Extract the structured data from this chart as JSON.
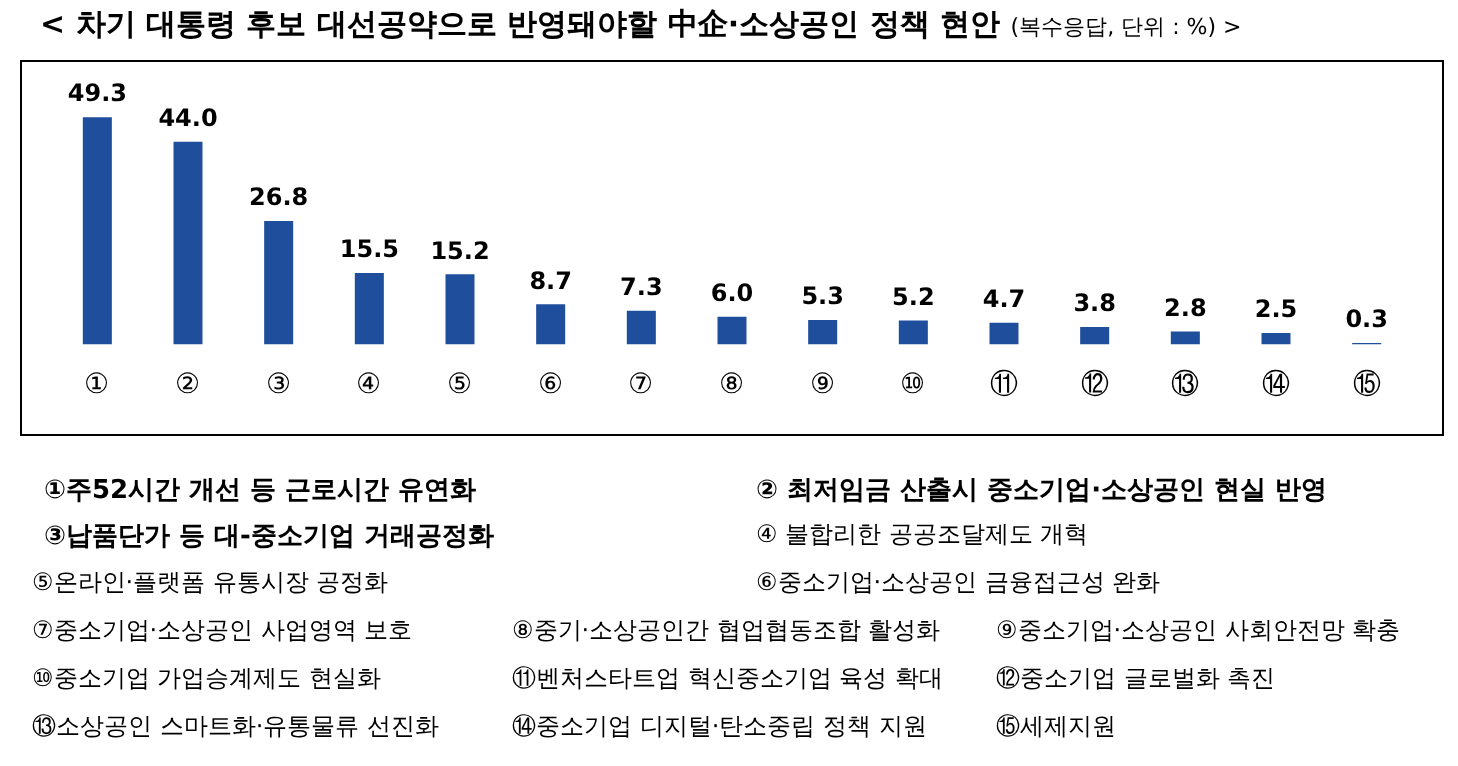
{
  "chart_data": {
    "type": "bar",
    "title": "< 차기 대통령 후보 대선공약으로 반영돼야할 中企·소상공인 정책 현안",
    "subtitle": "(복수응답, 단위 : %) >",
    "categories": [
      "①",
      "②",
      "③",
      "④",
      "⑤",
      "⑥",
      "⑦",
      "⑧",
      "⑨",
      "⑩",
      "⑪",
      "⑫",
      "⑬",
      "⑭",
      "⑮"
    ],
    "values": [
      49.3,
      44.0,
      26.8,
      15.5,
      15.2,
      8.7,
      7.3,
      6.0,
      5.3,
      5.2,
      4.7,
      3.8,
      2.8,
      2.5,
      0.3
    ],
    "value_labels": [
      "49.3",
      "44.0",
      "26.8",
      "15.5",
      "15.2",
      "8.7",
      "7.3",
      "6.0",
      "5.3",
      "5.2",
      "4.7",
      "3.8",
      "2.8",
      "2.5",
      "0.3"
    ],
    "color": "#1f4e9c",
    "tick_labels": "x",
    "grid": false,
    "legend": false,
    "annotations": [
      "①주52시간 개선 등 근로시간 유연화",
      "② 최저임금 산출시 중소기업·소상공인 현실 반영",
      "③납품단가 등 대-중소기업 거래공정화",
      "④ 불합리한 공공조달제도 개혁",
      "⑤온라인·플랫폼 유통시장 공정화",
      "⑥중소기업·소상공인 금융접근성 완화",
      "⑦중소기업·소상공인 사업영역 보호",
      "⑧중기·소상공인간 협업협동조합 활성화",
      "⑨중소기업·소상공인 사회안전망 확충",
      "⑩중소기업 가업승계제도 현실화",
      "⑪벤처스타트업 혁신중소기업 육성 확대",
      "⑫중소기업 글로벌화 촉진",
      "⑬소상공인 스마트화·유통물류 선진화",
      "⑭중소기업 디지털·탄소중립 정책 지원",
      "⑮세제지원"
    ]
  }
}
